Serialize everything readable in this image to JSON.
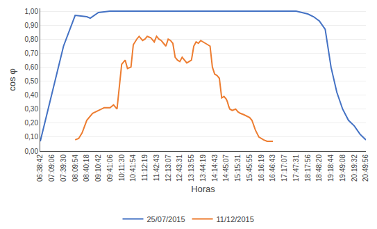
{
  "chart_data": {
    "type": "line",
    "xlabel": "Horas",
    "ylabel": "cos φ",
    "xlim": [
      0,
      28
    ],
    "xticks": [
      {
        "value": 0,
        "label": "06:38:42"
      },
      {
        "value": 1,
        "label": "07:09:06"
      },
      {
        "value": 2,
        "label": "07:39:30"
      },
      {
        "value": 3,
        "label": "08:09:54"
      },
      {
        "value": 4,
        "label": "08:40:18"
      },
      {
        "value": 5,
        "label": "09:10:42"
      },
      {
        "value": 6,
        "label": "09:41:06"
      },
      {
        "value": 7,
        "label": "10:11:30"
      },
      {
        "value": 8,
        "label": "10:41:54"
      },
      {
        "value": 9,
        "label": "11:12:19"
      },
      {
        "value": 10,
        "label": "11:42:43"
      },
      {
        "value": 11,
        "label": "12:13:07"
      },
      {
        "value": 12,
        "label": "12:43:31"
      },
      {
        "value": 13,
        "label": "13:13:55"
      },
      {
        "value": 14,
        "label": "13:44:19"
      },
      {
        "value": 15,
        "label": "14:14:43"
      },
      {
        "value": 16,
        "label": "14:45:07"
      },
      {
        "value": 17,
        "label": "15:15:31"
      },
      {
        "value": 18,
        "label": "15:45:55"
      },
      {
        "value": 19,
        "label": "16:16:19"
      },
      {
        "value": 20,
        "label": "16:46:43"
      },
      {
        "value": 21,
        "label": "17:17:07"
      },
      {
        "value": 22,
        "label": "17:47:31"
      },
      {
        "value": 23,
        "label": "18:17:56"
      },
      {
        "value": 24,
        "label": "18:48:20"
      },
      {
        "value": 25,
        "label": "19:18:44"
      },
      {
        "value": 26,
        "label": "19:49:08"
      },
      {
        "value": 27,
        "label": "20:19:32"
      },
      {
        "value": 28,
        "label": "20:49:56"
      }
    ],
    "ylim": [
      0.0,
      1.02
    ],
    "yticks": [
      {
        "value": 0.0,
        "label": "0,00"
      },
      {
        "value": 0.1,
        "label": "0,10"
      },
      {
        "value": 0.2,
        "label": "0,20"
      },
      {
        "value": 0.3,
        "label": "0,30"
      },
      {
        "value": 0.4,
        "label": "0,40"
      },
      {
        "value": 0.5,
        "label": "0,50"
      },
      {
        "value": 0.6,
        "label": "0,60"
      },
      {
        "value": 0.7,
        "label": "0,70"
      },
      {
        "value": 0.8,
        "label": "0,80"
      },
      {
        "value": 0.9,
        "label": "0,90"
      },
      {
        "value": 1.0,
        "label": "1,00"
      }
    ],
    "grid": "y",
    "legend": "bottom",
    "series": [
      {
        "name": "25/07/2015",
        "color": "#4472C4",
        "x": [
          0,
          1,
          2,
          3,
          4,
          4.3,
          5,
          6,
          7,
          8,
          9,
          10,
          11,
          12,
          13,
          14,
          15,
          16,
          17,
          18,
          19,
          20,
          21,
          22,
          23,
          23.5,
          24,
          24.5,
          25,
          25.5,
          26,
          26.5,
          27,
          27.5,
          28
        ],
        "values": [
          0.07,
          0.41,
          0.75,
          0.97,
          0.96,
          0.95,
          0.99,
          1.0,
          1.0,
          1.0,
          1.0,
          1.0,
          1.0,
          1.0,
          1.0,
          1.0,
          1.0,
          1.0,
          1.0,
          1.0,
          1.0,
          1.0,
          1.0,
          1.0,
          0.98,
          0.96,
          0.93,
          0.87,
          0.6,
          0.42,
          0.3,
          0.22,
          0.18,
          0.12,
          0.08
        ]
      },
      {
        "name": "11/12/2015",
        "color": "#ED7D31",
        "x": [
          3,
          3.3,
          3.6,
          4.0,
          4.5,
          5.0,
          5.5,
          6.0,
          6.3,
          6.6,
          7.0,
          7.3,
          7.5,
          7.8,
          8.0,
          8.3,
          8.5,
          8.8,
          9.0,
          9.2,
          9.5,
          9.8,
          10.0,
          10.2,
          10.4,
          10.6,
          10.8,
          11.0,
          11.2,
          11.4,
          11.6,
          11.8,
          12.0,
          12.2,
          12.4,
          12.6,
          12.8,
          13.0,
          13.2,
          13.4,
          13.6,
          13.8,
          14.0,
          14.2,
          14.4,
          14.6,
          14.8,
          15.0,
          15.2,
          15.4,
          15.6,
          15.8,
          16.0,
          16.1,
          16.2,
          16.3,
          16.5,
          16.8,
          17.0,
          17.2,
          17.5,
          17.8,
          18.0,
          18.2,
          18.5,
          18.8,
          19.0,
          19.2,
          19.5,
          19.8,
          20.0
        ],
        "values": [
          0.08,
          0.09,
          0.13,
          0.22,
          0.27,
          0.29,
          0.31,
          0.31,
          0.33,
          0.3,
          0.62,
          0.65,
          0.59,
          0.6,
          0.76,
          0.8,
          0.82,
          0.79,
          0.8,
          0.82,
          0.81,
          0.78,
          0.82,
          0.8,
          0.79,
          0.77,
          0.75,
          0.8,
          0.79,
          0.77,
          0.67,
          0.65,
          0.64,
          0.67,
          0.65,
          0.63,
          0.64,
          0.65,
          0.75,
          0.78,
          0.77,
          0.79,
          0.78,
          0.77,
          0.76,
          0.75,
          0.6,
          0.55,
          0.54,
          0.52,
          0.38,
          0.39,
          0.37,
          0.35,
          0.32,
          0.3,
          0.29,
          0.3,
          0.28,
          0.27,
          0.26,
          0.25,
          0.24,
          0.22,
          0.15,
          0.1,
          0.09,
          0.08,
          0.07,
          0.07,
          0.07
        ]
      }
    ]
  }
}
